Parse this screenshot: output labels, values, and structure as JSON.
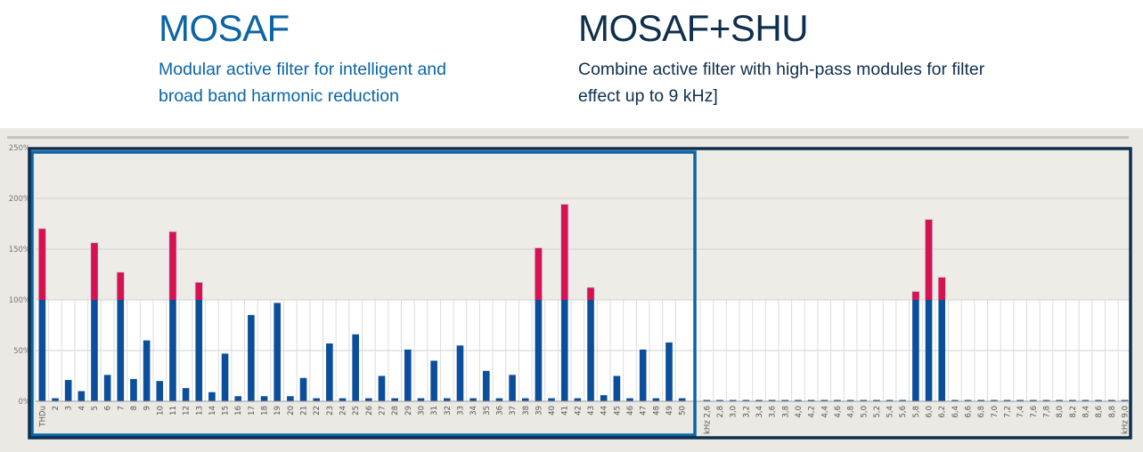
{
  "header": {
    "left": {
      "title": "MOSAF",
      "line1": "Modular active filter for intelligent and",
      "line2": "broad band harmonic reduction"
    },
    "right": {
      "title": "MOSAF+SHU",
      "line1": "Combine active filter with high-pass modules for filter",
      "line2": "effect up to 9 kHz]"
    }
  },
  "colors": {
    "base": "#0b4f9c",
    "excess": "#d6134f",
    "background": "#eae9e3",
    "frame_left": "#0a64a8",
    "frame_right": "#0f2f4e"
  },
  "chart_data": {
    "type": "bar",
    "stacked": true,
    "y_ticks": [
      "0%",
      "50%",
      "100%",
      "150%",
      "200%",
      "250%"
    ],
    "ylim": [
      0,
      250
    ],
    "limit_line": 100,
    "grid": true,
    "series_meaning": "blue portion up to 100%, red portion above 100%",
    "harmonics": {
      "categories": [
        "THDu",
        "2",
        "3",
        "4",
        "5",
        "6",
        "7",
        "8",
        "9",
        "10",
        "11",
        "12",
        "13",
        "14",
        "15",
        "16",
        "17",
        "18",
        "19",
        "20",
        "21",
        "22",
        "23",
        "24",
        "25",
        "26",
        "27",
        "28",
        "29",
        "30",
        "31",
        "32",
        "33",
        "34",
        "35",
        "36",
        "37",
        "38",
        "39",
        "40",
        "41",
        "42",
        "43",
        "44",
        "45",
        "46",
        "47",
        "48",
        "49",
        "50"
      ],
      "values": [
        170,
        3,
        21,
        10,
        156,
        26,
        127,
        22,
        60,
        20,
        167,
        13,
        117,
        9,
        47,
        5,
        85,
        5,
        97,
        5,
        23,
        3,
        57,
        3,
        66,
        3,
        25,
        3,
        51,
        3,
        40,
        3,
        55,
        3,
        30,
        3,
        26,
        3,
        151,
        3,
        194,
        3,
        112,
        6,
        25,
        3,
        51,
        3,
        58,
        3
      ]
    },
    "frequency": {
      "categories": [
        "kHz 2,6",
        "2,8",
        "3,0",
        "3,2",
        "3,4",
        "3,6",
        "3,8",
        "4,0",
        "4,2",
        "4,4",
        "4,6",
        "4,8",
        "5,0",
        "5,2",
        "5,4",
        "5,6",
        "5,8",
        "6,0",
        "6,2",
        "6,4",
        "6,6",
        "6,8",
        "7,0",
        "7,2",
        "7,4",
        "7,6",
        "7,8",
        "8,0",
        "8,2",
        "8,4",
        "8,6",
        "8,8",
        "kHz 9,0"
      ],
      "values": [
        1,
        1,
        1,
        1,
        1,
        1,
        1,
        1,
        1,
        1,
        1,
        1,
        1,
        1,
        1,
        1,
        108,
        179,
        122,
        1,
        1,
        1,
        1,
        1,
        1,
        1,
        1,
        1,
        1,
        1,
        1,
        1,
        1
      ]
    }
  }
}
